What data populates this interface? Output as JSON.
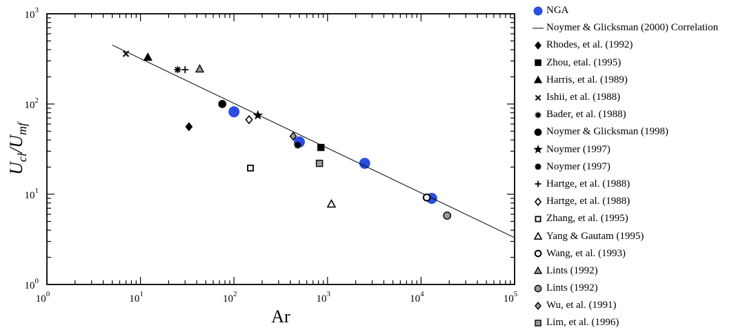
{
  "chart_data": {
    "type": "scatter",
    "xscale": "log",
    "yscale": "log",
    "xlim": [
      1,
      100000
    ],
    "ylim": [
      1,
      1000
    ],
    "xlabel": "Ar",
    "ylabel": "U_cl/U_mf",
    "title": "",
    "x_ticks": [
      {
        "base": "10",
        "exp": "0"
      },
      {
        "base": "10",
        "exp": "1"
      },
      {
        "base": "10",
        "exp": "2"
      },
      {
        "base": "10",
        "exp": "3"
      },
      {
        "base": "10",
        "exp": "4"
      },
      {
        "base": "10",
        "exp": "5"
      }
    ],
    "y_ticks": [
      {
        "base": "10",
        "exp": "0"
      },
      {
        "base": "10",
        "exp": "1"
      },
      {
        "base": "10",
        "exp": "2"
      },
      {
        "base": "10",
        "exp": "3"
      }
    ],
    "legend_position": "right",
    "series": [
      {
        "name": "NGA",
        "marker": "circle-large",
        "fill": "#2b4fe0",
        "stroke": "#2b4fe0",
        "points": [
          [
            100,
            82
          ],
          [
            500,
            38
          ],
          [
            2500,
            22
          ],
          [
            13000,
            9
          ]
        ]
      },
      {
        "name": "Noymer & Glicksman (2000) Correlation",
        "kind": "line",
        "stroke": "#000000",
        "points": [
          [
            5,
            450
          ],
          [
            100000,
            3.3
          ]
        ]
      },
      {
        "name": "Rhodes, et al. (1992)",
        "marker": "diamond",
        "fill": "#000000",
        "stroke": "#000000",
        "points": [
          [
            33,
            56
          ]
        ]
      },
      {
        "name": "Zhou, etal. (1995)",
        "marker": "square",
        "fill": "#000000",
        "stroke": "#000000",
        "points": [
          [
            850,
            33
          ]
        ]
      },
      {
        "name": "Harris, et al. (1989)",
        "marker": "triangle",
        "fill": "#000000",
        "stroke": "#000000",
        "points": [
          [
            12,
            330
          ]
        ]
      },
      {
        "name": "Ishii, et al. (1988)",
        "marker": "x",
        "fill": "none",
        "stroke": "#000000",
        "points": [
          [
            7,
            360
          ]
        ]
      },
      {
        "name": "Bader, et al. (1988)",
        "marker": "asterisk",
        "fill": "none",
        "stroke": "#000000",
        "points": [
          [
            25,
            240
          ]
        ]
      },
      {
        "name": "Noymer & Glicksman (1998)",
        "marker": "circle",
        "fill": "#000000",
        "stroke": "#000000",
        "points": [
          [
            75,
            100
          ]
        ]
      },
      {
        "name": "Noymer (1997)",
        "marker": "star",
        "fill": "#000000",
        "stroke": "#000000",
        "points": [
          [
            180,
            75
          ]
        ]
      },
      {
        "name": "Noymer (1997)",
        "marker": "asterisk-bold",
        "fill": "none",
        "stroke": "#000000",
        "points": [
          [
            480,
            35
          ]
        ]
      },
      {
        "name": "Hartge, et al. (1988)",
        "marker": "plus",
        "fill": "none",
        "stroke": "#000000",
        "points": [
          [
            30,
            240
          ]
        ]
      },
      {
        "name": "Hartge, et al. (1988)",
        "marker": "diamond-open",
        "fill": "#ffffff",
        "stroke": "#000000",
        "points": [
          [
            145,
            67
          ]
        ]
      },
      {
        "name": "Zhang, et al. (1995)",
        "marker": "square-open",
        "fill": "#ffffff",
        "stroke": "#000000",
        "points": [
          [
            150,
            19.5
          ]
        ]
      },
      {
        "name": "Yang & Gautam (1995)",
        "marker": "triangle-open",
        "fill": "#ffffff",
        "stroke": "#000000",
        "points": [
          [
            1100,
            7.8
          ]
        ]
      },
      {
        "name": "Wang, et al. (1993)",
        "marker": "circle-open",
        "fill": "#ffffff",
        "stroke": "#000000",
        "points": [
          [
            11500,
            9.2
          ]
        ]
      },
      {
        "name": "Lints (1992)",
        "marker": "triangle",
        "fill": "#9a9a9a",
        "stroke": "#000000",
        "points": [
          [
            43,
            245
          ]
        ]
      },
      {
        "name": "Lints (1992)",
        "marker": "circle",
        "fill": "#9a9a9a",
        "stroke": "#000000",
        "points": [
          [
            19000,
            5.8
          ]
        ]
      },
      {
        "name": "Wu, et al. (1991)",
        "marker": "diamond",
        "fill": "#9a9a9a",
        "stroke": "#000000",
        "points": [
          [
            430,
            44
          ]
        ]
      },
      {
        "name": "Lim, et al. (1996)",
        "marker": "square",
        "fill": "#9a9a9a",
        "stroke": "#000000",
        "points": [
          [
            820,
            22
          ]
        ]
      }
    ]
  }
}
